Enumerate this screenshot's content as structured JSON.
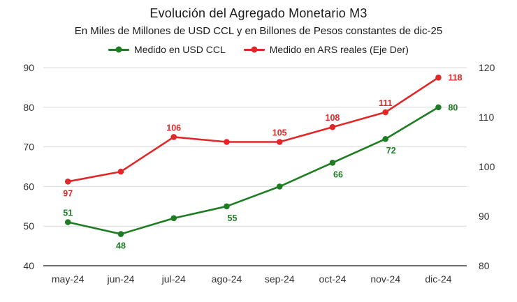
{
  "header": {
    "title": "Evolución del Agregado Monetario M3",
    "subtitle": "En Miles de Millones de USD CCL y en Billones de Pesos constantes de dic-25"
  },
  "legend": {
    "position": "top",
    "items": [
      {
        "label": "Medido en USD CCL",
        "color": "#1e7d23"
      },
      {
        "label": "Medido en ARS reales (Eje Der)",
        "color": "#e02828"
      }
    ]
  },
  "chart_data": {
    "type": "line",
    "title": "Evolución del Agregado Monetario M3",
    "subtitle": "En Miles de Millones de USD CCL y en Billones de Pesos constantes de dic-25",
    "categories": [
      "may-24",
      "jun-24",
      "jul-24",
      "ago-24",
      "sep-24",
      "oct-24",
      "nov-24",
      "dic-24"
    ],
    "left_axis": {
      "min": 40,
      "max": 90,
      "ticks": [
        90,
        80,
        70,
        60,
        50,
        40
      ]
    },
    "right_axis": {
      "min": 80,
      "max": 120,
      "ticks": [
        120,
        110,
        100,
        90,
        80
      ]
    },
    "grid": true,
    "colors": {
      "grid": "#d9d9d9",
      "baseline": "#595959"
    },
    "series": [
      {
        "name": "Medido en USD CCL",
        "axis": "left",
        "color": "#1e7d23",
        "values": [
          51,
          48,
          52,
          55,
          60,
          66,
          72,
          80
        ],
        "point_labels": [
          "51",
          "48",
          "",
          "55",
          "",
          "66",
          "72",
          "80"
        ],
        "label_pos": [
          "above",
          "below",
          "",
          "below-right",
          "",
          "below-right",
          "below-right",
          "right"
        ]
      },
      {
        "name": "Medido en ARS reales (Eje Der)",
        "axis": "right",
        "color": "#e02828",
        "values": [
          97,
          99,
          106,
          105,
          105,
          108,
          111,
          118
        ],
        "point_labels": [
          "97",
          "",
          "106",
          "",
          "105",
          "108",
          "111",
          "118"
        ],
        "label_pos": [
          "below",
          "",
          "above",
          "",
          "above",
          "above",
          "above",
          "right"
        ]
      }
    ]
  }
}
